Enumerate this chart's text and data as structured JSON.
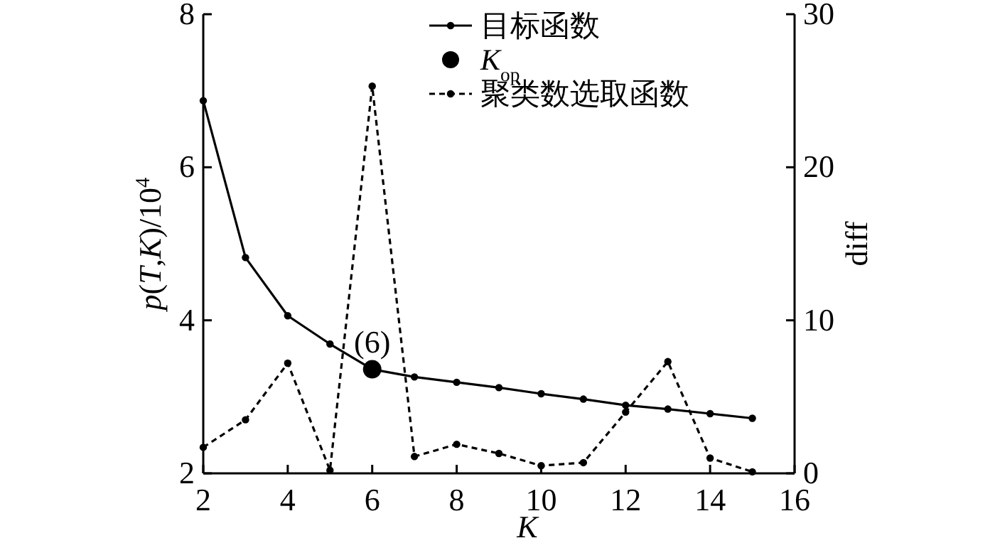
{
  "chart_data": {
    "type": "line",
    "xlabel": "K",
    "ylabel": "*p*(*T*,*K*)/10$^{4}$",
    "y2label": "diff",
    "x": [
      2,
      3,
      4,
      5,
      6,
      7,
      8,
      9,
      10,
      11,
      12,
      13,
      14,
      15
    ],
    "xlim": [
      2,
      16
    ],
    "xticks": [
      2,
      4,
      6,
      8,
      10,
      12,
      14,
      16
    ],
    "ylim": [
      2,
      8
    ],
    "yticks": [
      2,
      4,
      6,
      8
    ],
    "y2lim": [
      0,
      30
    ],
    "y2ticks": [
      0,
      10,
      20,
      30
    ],
    "legend": "top right",
    "marker": "circle",
    "series": [
      {
        "name": "目标函数",
        "color": "#000000",
        "line_style": "solid",
        "values": [
          6.87,
          4.82,
          4.06,
          3.69,
          3.36,
          3.26,
          3.19,
          3.12,
          3.04,
          2.97,
          2.89,
          2.84,
          2.78,
          2.72
        ]
      },
      {
        "name": "*K*$_{op}$",
        "type": "scatter",
        "color": "#000000",
        "x": [
          6
        ],
        "values": [
          3.36
        ]
      },
      {
        "name": "聚类数选取函数",
        "color": "#000000",
        "line_style": "dashed",
        "axis": "y2",
        "values": [
          1.7,
          3.5,
          7.2,
          0.2,
          25.3,
          1.1,
          1.9,
          1.3,
          0.5,
          0.7,
          4.0,
          7.3,
          1.0,
          0.1
        ]
      }
    ],
    "annotations": [
      {
        "text": "(6)",
        "x": 6,
        "y": 3.36
      }
    ]
  }
}
